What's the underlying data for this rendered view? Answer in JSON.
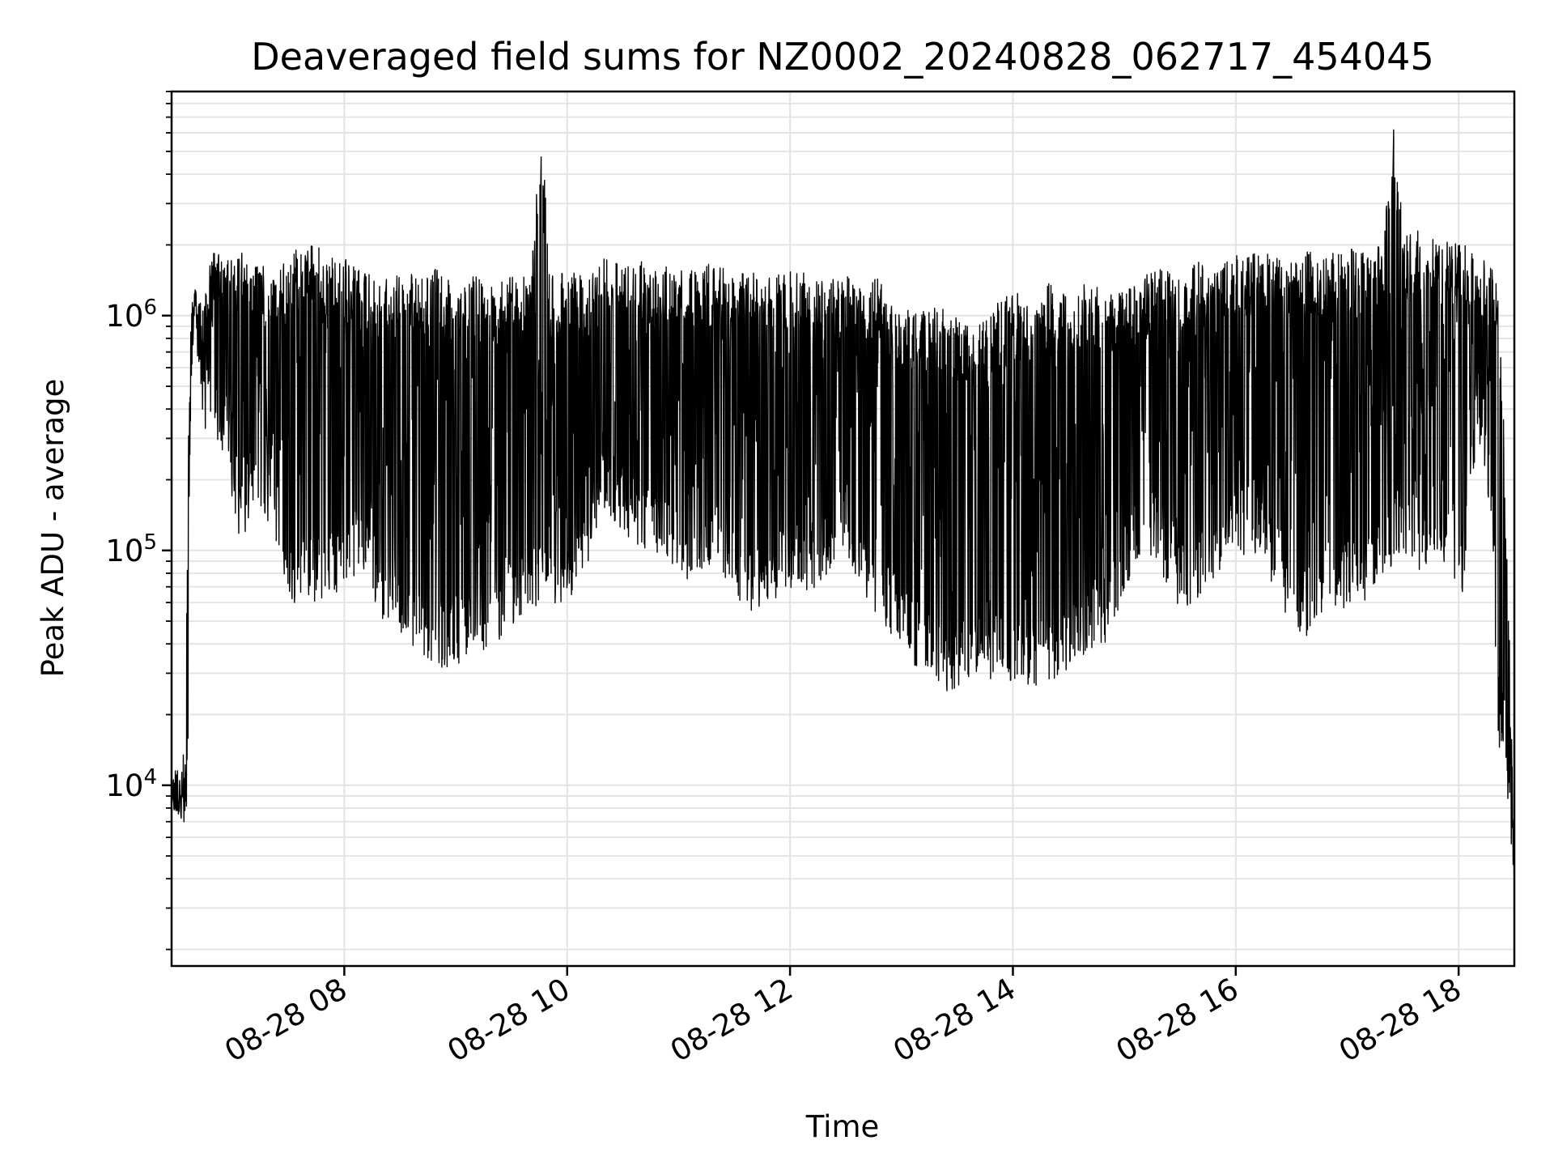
{
  "chart_data": {
    "type": "line",
    "title": "Deaveraged field sums for NZ0002_20240828_062717_454045",
    "xlabel": "Time",
    "ylabel": "Peak ADU - average",
    "yscale": "log",
    "xlim": [
      "2024-08-28 06:27",
      "2024-08-28 18:30"
    ],
    "ylim": [
      1700,
      9000000
    ],
    "grid": true,
    "line_color": "#000000",
    "x_ticks": [
      {
        "t": "2024-08-28 08:00",
        "label": "08-28 08"
      },
      {
        "t": "2024-08-28 10:00",
        "label": "08-28 10"
      },
      {
        "t": "2024-08-28 12:00",
        "label": "08-28 12"
      },
      {
        "t": "2024-08-28 14:00",
        "label": "08-28 14"
      },
      {
        "t": "2024-08-28 16:00",
        "label": "08-28 16"
      },
      {
        "t": "2024-08-28 18:00",
        "label": "08-28 18"
      }
    ],
    "y_ticks": [
      {
        "value": 10000,
        "base": "10",
        "exp": "4"
      },
      {
        "value": 100000,
        "base": "10",
        "exp": "5"
      },
      {
        "value": 1000000,
        "base": "10",
        "exp": "6"
      }
    ],
    "series": [
      {
        "x": [
          "06:27",
          "06:33",
          "06:35",
          "06:36",
          "06:38",
          "06:40",
          "06:42",
          "06:45",
          "06:50",
          "06:55",
          "07:00",
          "07:05",
          "07:10",
          "07:20",
          "07:30",
          "07:40",
          "07:50",
          "08:00",
          "08:10",
          "08:20",
          "08:30",
          "08:40",
          "08:50",
          "09:00",
          "09:10",
          "09:20",
          "09:30",
          "09:40",
          "09:47",
          "09:50",
          "10:00",
          "10:10",
          "10:20",
          "10:30",
          "10:40",
          "10:50",
          "11:00",
          "11:10",
          "11:20",
          "11:30",
          "11:40",
          "11:50",
          "12:00",
          "12:10",
          "12:20",
          "12:30",
          "12:40",
          "12:50",
          "13:00",
          "13:10",
          "13:20",
          "13:30",
          "13:40",
          "13:50",
          "14:00",
          "14:10",
          "14:20",
          "14:30",
          "14:40",
          "14:50",
          "15:00",
          "15:10",
          "15:20",
          "15:30",
          "15:40",
          "15:50",
          "16:00",
          "16:10",
          "16:20",
          "16:30",
          "16:40",
          "16:50",
          "17:00",
          "17:10",
          "17:20",
          "17:25",
          "17:30",
          "17:40",
          "17:50",
          "18:00",
          "18:05",
          "18:10",
          "18:15",
          "18:20",
          "18:25",
          "18:28",
          "18:30"
        ],
        "hi": [
          11000,
          14000,
          13000,
          300000,
          1200000,
          1400000,
          1300000,
          1300000,
          2000000,
          1700000,
          1800000,
          1900000,
          1700000,
          1600000,
          1700000,
          2200000,
          1800000,
          1800000,
          1600000,
          1400000,
          1500000,
          1500000,
          1600000,
          1400000,
          1500000,
          1400000,
          1500000,
          1500000,
          5500000,
          1500000,
          1600000,
          1500000,
          1800000,
          1600000,
          1700000,
          1600000,
          1700000,
          1600000,
          1700000,
          1500000,
          1600000,
          1500000,
          1600000,
          1500000,
          1400000,
          1500000,
          1400000,
          1500000,
          1000000,
          1200000,
          1100000,
          1000000,
          900000,
          1100000,
          1300000,
          1100000,
          1400000,
          1200000,
          1400000,
          1300000,
          1300000,
          1500000,
          1600000,
          1500000,
          1700000,
          1600000,
          1800000,
          1900000,
          1800000,
          1700000,
          1900000,
          1800000,
          2000000,
          1900000,
          2000000,
          6500000,
          2200000,
          2400000,
          2200000,
          2100000,
          2000000,
          1800000,
          1700000,
          1500000,
          140000,
          20000,
          5000
        ],
        "lo": [
          8000,
          7000,
          6500,
          9000,
          600000,
          800000,
          500000,
          300000,
          300000,
          250000,
          150000,
          100000,
          150000,
          130000,
          60000,
          55000,
          60000,
          70000,
          80000,
          50000,
          40000,
          35000,
          32000,
          30000,
          35000,
          40000,
          45000,
          50000,
          60000,
          55000,
          60000,
          80000,
          150000,
          120000,
          100000,
          90000,
          80000,
          70000,
          80000,
          60000,
          55000,
          60000,
          70000,
          60000,
          80000,
          100000,
          60000,
          50000,
          35000,
          30000,
          25000,
          24000,
          26000,
          28000,
          25000,
          26000,
          27000,
          30000,
          35000,
          40000,
          60000,
          100000,
          80000,
          55000,
          60000,
          80000,
          100000,
          90000,
          70000,
          45000,
          40000,
          60000,
          55000,
          60000,
          70000,
          90000,
          100000,
          80000,
          90000,
          70000,
          60000,
          300000,
          200000,
          16000,
          12000,
          4000,
          3500
        ]
      }
    ]
  }
}
